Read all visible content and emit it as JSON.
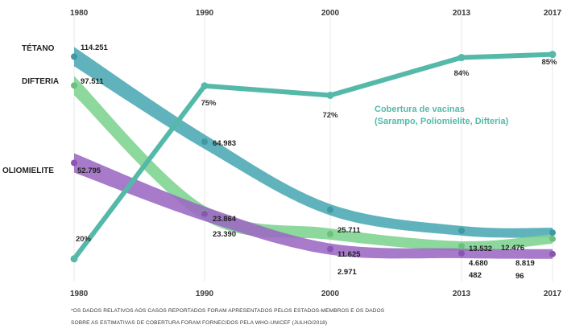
{
  "chart_data": {
    "type": "line",
    "x": [
      "1980",
      "1990",
      "2000",
      "2013",
      "2017"
    ],
    "series": [
      {
        "name": "TÉTANO",
        "values": [
          114251,
          64983,
          25711,
          13532,
          12476
        ],
        "labels": [
          "114.251",
          "64.983",
          "25.711",
          "13.532",
          "12.476"
        ],
        "color": "#4aa8b3"
      },
      {
        "name": "DIFTERIA",
        "values": [
          97511,
          23864,
          11625,
          4680,
          8819
        ],
        "labels": [
          "97.511",
          "23.864",
          "11.625",
          "4.680",
          "8.819"
        ],
        "color": "#7dd38f"
      },
      {
        "name": "OLIOMIELITE",
        "values": [
          52795,
          23390,
          2971,
          482,
          96
        ],
        "labels": [
          "52.795",
          "23.390",
          "2.971",
          "482",
          "96"
        ],
        "color": "#9b68c3"
      }
    ],
    "coverage": {
      "name": "Cobertura de vacinas",
      "name_line2": "(Sarampo, Poliomielite, Difteria)",
      "values": [
        20,
        75,
        72,
        84,
        85
      ],
      "labels": [
        "20%",
        "75%",
        "72%",
        "84%",
        "85%"
      ],
      "color": "#55b9a9"
    },
    "grid": "vertical",
    "footnote": [
      "*OS DADOS RELATIVOS AOS CASOS REPORTADOS FORAM APRESENTADOS PELOS ESTADOS-MEMBROS E OS DADOS",
      "SOBRE AS ESTIMATIVAS DE COBERTURA FORAM FORNECIDOS PELA WHO-UNICEF (JULHO/2018)"
    ]
  }
}
